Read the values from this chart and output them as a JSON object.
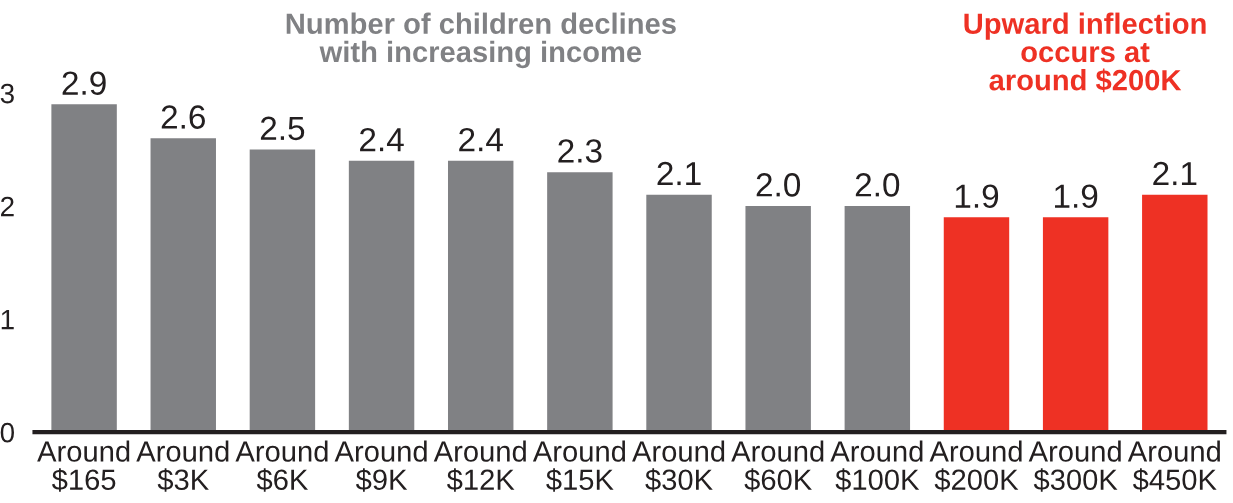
{
  "chart_data": {
    "type": "bar",
    "categories": [
      "Around\n$165",
      "Around\n$3K",
      "Around\n$6K",
      "Around\n$9K",
      "Around\n$12K",
      "Around\n$15K",
      "Around\n$30K",
      "Around\n$60K",
      "Around\n$100K",
      "Around\n$200K",
      "Around\n$300K",
      "Around\n$450K"
    ],
    "values": [
      2.9,
      2.6,
      2.5,
      2.4,
      2.4,
      2.3,
      2.1,
      2.0,
      2.0,
      1.9,
      1.9,
      2.1
    ],
    "colors": [
      "#808184",
      "#808184",
      "#808184",
      "#808184",
      "#808184",
      "#808184",
      "#808184",
      "#808184",
      "#808184",
      "#ee3124",
      "#ee3124",
      "#ee3124"
    ],
    "value_labels": [
      "2.9",
      "2.6",
      "2.5",
      "2.4",
      "2.4",
      "2.3",
      "2.1",
      "2.0",
      "2.0",
      "1.9",
      "1.9",
      "2.1"
    ],
    "ylim": [
      0,
      3
    ],
    "yticks": [
      0,
      1,
      2,
      3
    ],
    "grid": false,
    "annotations": [
      "Number of children declines\nwith increasing income",
      "Upward inflection\noccurs at\naround $200K"
    ]
  }
}
